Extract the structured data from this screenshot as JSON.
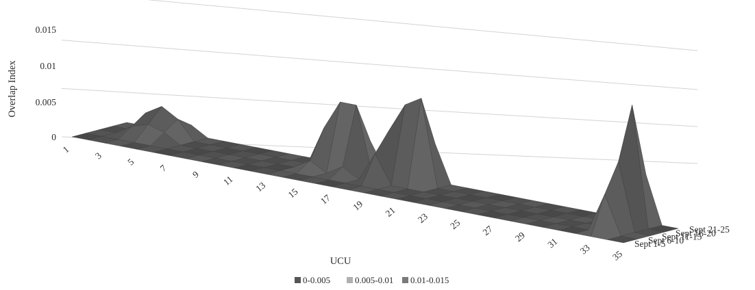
{
  "chart_data": {
    "type": "surface",
    "title": "",
    "xlabel": "UCU",
    "ylabel": "Overlap Index",
    "zlim": [
      0,
      0.015
    ],
    "z_ticks": [
      "0",
      "0.005",
      "0.01",
      "0.015"
    ],
    "x_tick_labels": [
      "1",
      "3",
      "5",
      "7",
      "9",
      "11",
      "13",
      "15",
      "17",
      "19",
      "21",
      "23",
      "25",
      "27",
      "29",
      "31",
      "33",
      "35"
    ],
    "series_labels": [
      "Sept 1-5",
      "Sept 6-10",
      "Sept 11-15",
      "Sept 16-20",
      "Sept 21-25"
    ],
    "legend": [
      {
        "label": "0-0.005",
        "color": "#555555"
      },
      {
        "label": "0.005-0.01",
        "color": "#b0b0b0"
      },
      {
        "label": "0.01-0.015",
        "color": "#7a7a7a"
      }
    ],
    "grid": true,
    "legend_position": "bottom",
    "series": [
      {
        "name": "Sept 1-5",
        "values": [
          0,
          0,
          0,
          0,
          0,
          0,
          0,
          0,
          0,
          0,
          0,
          0,
          0,
          0,
          0,
          0,
          0,
          0,
          0,
          0,
          0,
          0,
          0,
          0,
          0,
          0,
          0,
          0,
          0,
          0,
          0,
          0,
          0,
          0,
          0
        ]
      },
      {
        "name": "Sept 6-10",
        "values": [
          0,
          0,
          0,
          0,
          0,
          0,
          0,
          0,
          0,
          0,
          0,
          0,
          0,
          0,
          0,
          0,
          0,
          0,
          0,
          0,
          0,
          0,
          0,
          0,
          0,
          0,
          0,
          0,
          0,
          0,
          0,
          0,
          0.004,
          0,
          0
        ]
      },
      {
        "name": "Sept 11-15",
        "values": [
          0,
          0,
          0.001,
          0.0015,
          0.001,
          0,
          0,
          0,
          0,
          0,
          0,
          0,
          0,
          0.001,
          0,
          0.001,
          0,
          0.003,
          0,
          0,
          0,
          0,
          0,
          0,
          0,
          0,
          0,
          0,
          0,
          0,
          0,
          0,
          0.007,
          0,
          0
        ]
      },
      {
        "name": "Sept 16-20",
        "values": [
          0,
          0,
          0.002,
          0.003,
          0.002,
          0,
          0,
          0,
          0,
          0,
          0,
          0,
          0,
          0.004,
          0.007,
          0.007,
          0,
          0.005,
          0.008,
          0.009,
          0,
          0,
          0,
          0,
          0,
          0,
          0,
          0,
          0,
          0,
          0,
          0,
          0.0125,
          0,
          0
        ]
      },
      {
        "name": "Sept 21-25",
        "values": [
          0,
          0,
          0.001,
          0.001,
          0.001,
          0,
          0,
          0,
          0,
          0,
          0,
          0,
          0,
          0.002,
          0.003,
          0.003,
          0,
          0.002,
          0.004,
          0.004,
          0,
          0,
          0,
          0,
          0,
          0,
          0,
          0,
          0,
          0,
          0,
          0,
          0.005,
          0,
          0
        ]
      }
    ]
  }
}
